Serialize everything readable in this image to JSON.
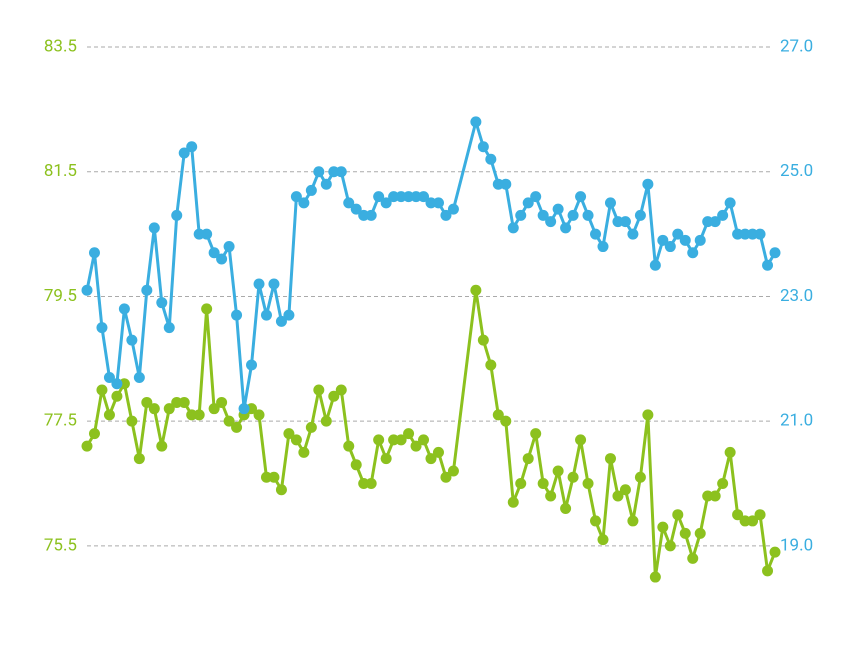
{
  "chart_data": {
    "type": "line",
    "x": [
      0,
      1,
      2,
      3,
      4,
      5,
      6,
      7,
      8,
      9,
      10,
      11,
      12,
      13,
      14,
      15,
      16,
      17,
      18,
      19,
      20,
      21,
      22,
      23,
      24,
      25,
      26,
      27,
      28,
      29,
      30,
      31,
      32,
      33,
      34,
      35,
      36,
      37,
      38,
      39,
      40,
      41,
      42,
      43,
      44,
      45,
      46,
      47,
      48,
      49,
      52,
      53,
      54,
      55,
      56,
      57,
      58,
      59,
      60,
      61,
      62,
      63,
      64,
      65,
      66,
      67,
      68,
      69,
      70,
      71,
      72,
      73,
      74,
      75,
      76,
      77,
      78,
      79,
      80,
      81,
      82,
      83,
      84,
      85,
      86,
      87,
      88,
      89,
      90,
      91,
      92
    ],
    "xlim": [
      0,
      92
    ],
    "ylim": [
      74.6,
      83.5
    ],
    "yticks": [
      83.5,
      81.5,
      79.5,
      77.5,
      75.5
    ],
    "y2lim": [
      18.1,
      27.0
    ],
    "y2ticks": [
      {
        "value": 27,
        "label": "27.0"
      },
      {
        "value": 25,
        "label": "25.0"
      },
      {
        "value": 23,
        "label": "23.0"
      },
      {
        "value": 21,
        "label": "21.0"
      },
      {
        "value": 19,
        "label": "19.0"
      }
    ],
    "grid": true,
    "series": [
      {
        "color": "#8cc11e",
        "values": [
          77.1,
          77.3,
          78.0,
          77.6,
          77.9,
          78.1,
          77.5,
          76.9,
          77.8,
          77.7,
          77.1,
          77.7,
          77.8,
          77.8,
          77.6,
          77.6,
          79.3,
          77.7,
          77.8,
          77.5,
          77.4,
          77.6,
          77.7,
          77.6,
          76.6,
          76.6,
          76.4,
          77.3,
          77.2,
          77.0,
          77.4,
          78.0,
          77.5,
          77.9,
          78.0,
          77.1,
          76.8,
          76.5,
          76.5,
          77.2,
          76.9,
          77.2,
          77.2,
          77.3,
          77.1,
          77.2,
          76.9,
          77.0,
          76.6,
          76.7,
          79.6,
          78.8,
          78.4,
          77.6,
          77.5,
          76.2,
          76.5,
          76.9,
          77.3,
          76.5,
          76.3,
          76.7,
          76.1,
          76.6,
          77.2,
          76.5,
          75.9,
          75.6,
          76.9,
          76.3,
          76.4,
          75.9,
          76.6,
          77.6,
          75.0,
          75.8,
          75.5,
          76.0,
          75.7,
          75.3,
          75.7,
          76.3,
          76.3,
          76.5,
          77.0,
          76.0,
          75.9,
          75.9,
          76.0,
          75.1,
          75.4
        ]
      },
      {
        "color": "#3aaee0",
        "axis": "y2",
        "values": [
          23.1,
          23.7,
          22.5,
          21.7,
          21.6,
          22.8,
          22.3,
          21.7,
          23.1,
          24.1,
          22.9,
          22.5,
          24.3,
          25.3,
          25.4,
          24.0,
          24.0,
          23.7,
          23.6,
          23.8,
          22.7,
          21.2,
          21.9,
          23.2,
          22.7,
          23.2,
          22.6,
          22.7,
          24.6,
          24.5,
          24.7,
          25.0,
          24.8,
          25.0,
          25.0,
          24.5,
          24.4,
          24.3,
          24.3,
          24.6,
          24.5,
          24.6,
          24.6,
          24.6,
          24.6,
          24.6,
          24.5,
          24.5,
          24.3,
          24.4,
          25.8,
          25.4,
          25.2,
          24.8,
          24.8,
          24.1,
          24.3,
          24.5,
          24.6,
          24.3,
          24.2,
          24.4,
          24.1,
          24.3,
          24.6,
          24.3,
          24.0,
          23.8,
          24.5,
          24.2,
          24.2,
          24.0,
          24.3,
          24.8,
          23.5,
          23.9,
          23.8,
          24.0,
          23.9,
          23.7,
          23.9,
          24.2,
          24.2,
          24.3,
          24.5,
          24.0,
          24.0,
          24.0,
          24.0,
          23.5,
          23.7
        ]
      }
    ]
  }
}
